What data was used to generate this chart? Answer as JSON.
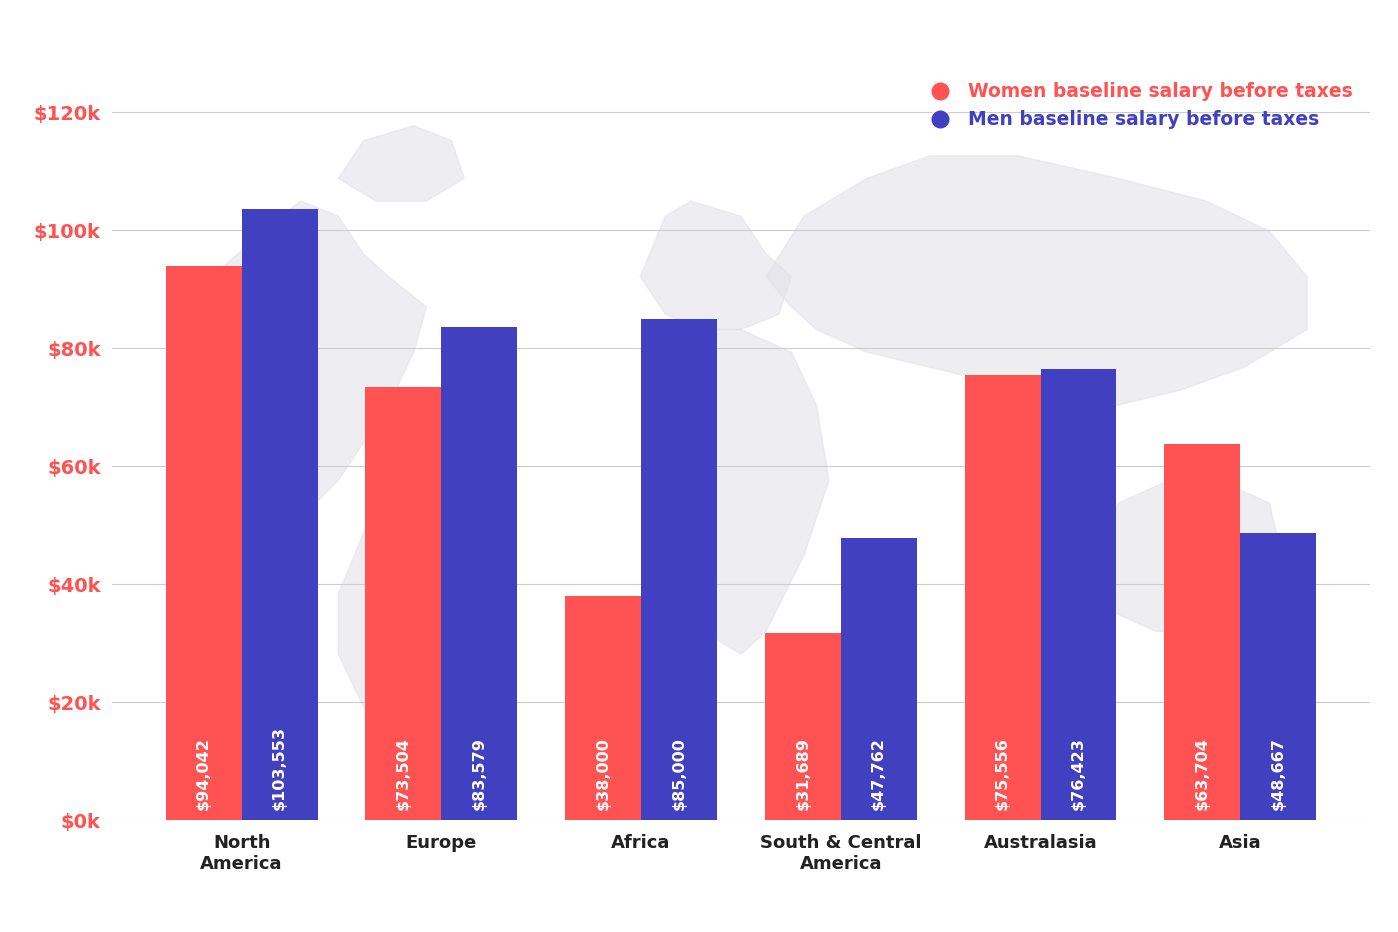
{
  "categories": [
    "North\nAmerica",
    "Europe",
    "Africa",
    "South & Central\nAmerica",
    "Australasia",
    "Asia"
  ],
  "women_values": [
    94042,
    73504,
    38000,
    31689,
    75556,
    63704
  ],
  "men_values": [
    103553,
    83579,
    85000,
    47762,
    76423,
    48667
  ],
  "women_labels": [
    "$94,042",
    "$73,504",
    "$38,000",
    "$31,689",
    "$75,556",
    "$63,704"
  ],
  "men_labels": [
    "$103,553",
    "$83,579",
    "$85,000",
    "$47,762",
    "$76,423",
    "$48,667"
  ],
  "women_color": "#FF5252",
  "men_color": "#4040C0",
  "background_color": "#FFFFFF",
  "ytick_labels": [
    "$0k",
    "$20k",
    "$40k",
    "$60k",
    "$80k",
    "$100k",
    "$120k"
  ],
  "ytick_values": [
    0,
    20000,
    40000,
    60000,
    80000,
    100000,
    120000
  ],
  "ylim": [
    0,
    128000
  ],
  "legend_women": "Women baseline salary before taxes",
  "legend_men": "Men baseline salary before taxes",
  "tick_color": "#FF5252",
  "xtick_color": "#222222",
  "label_fontsize": 13,
  "bar_label_fontsize": 11.5,
  "legend_fontsize": 13.5,
  "grid_color": "#CCCCCC",
  "bar_width": 0.38,
  "map_color": "#E0E0E8"
}
